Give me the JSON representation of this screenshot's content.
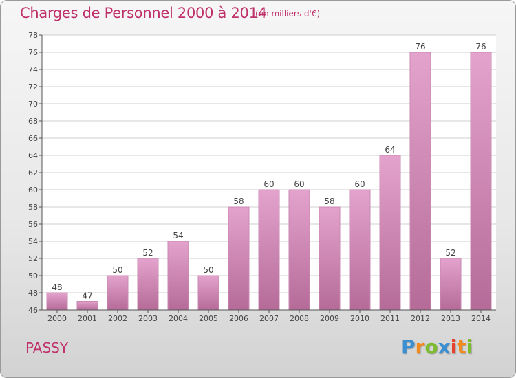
{
  "header": {
    "title": "Charges de Personnel 2000 à 2014",
    "subtitle": "(en milliers d'€)"
  },
  "footer": {
    "place": "PASSY",
    "logo": {
      "letters": [
        "P",
        "r",
        "o",
        "x",
        "i",
        "t",
        "i"
      ],
      "colors": [
        "#3b8fd1",
        "#f28a1e",
        "#7dbb2f",
        "#3b8fd1",
        "#e8412c",
        "#f28a1e",
        "#7dbb2f"
      ]
    }
  },
  "colors": {
    "bar_top": "#e3a3cc",
    "bar_bottom": "#b56b98",
    "grid": "#cfcfcf",
    "axis": "#555555"
  },
  "chart_data": {
    "type": "bar",
    "title": "Charges de Personnel 2000 à 2014",
    "subtitle": "(en milliers d'€)",
    "categories": [
      "2000",
      "2001",
      "2002",
      "2003",
      "2004",
      "2005",
      "2006",
      "2007",
      "2008",
      "2009",
      "2010",
      "2011",
      "2012",
      "2013",
      "2014"
    ],
    "values": [
      48,
      47,
      50,
      52,
      54,
      50,
      58,
      60,
      60,
      58,
      60,
      64,
      76,
      52,
      76
    ],
    "data_labels": [
      "48",
      "47",
      "50",
      "52",
      "54",
      "50",
      "58",
      "60",
      "60",
      "58",
      "60",
      "64",
      "76",
      "52",
      "76"
    ],
    "ylim": [
      46,
      78
    ],
    "yticks": [
      46,
      48,
      50,
      52,
      54,
      56,
      58,
      60,
      62,
      64,
      66,
      68,
      70,
      72,
      74,
      76,
      78
    ],
    "grid": true,
    "legend": "none"
  }
}
